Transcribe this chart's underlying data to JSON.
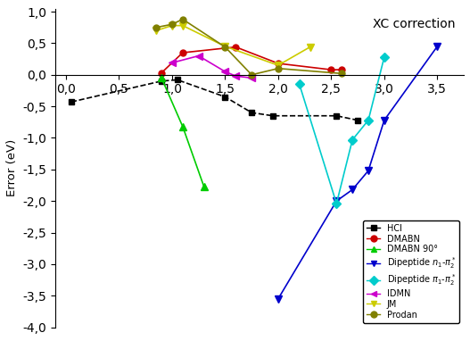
{
  "title": "XC correction",
  "ylabel": "Error (eV)",
  "xlim": [
    -0.1,
    3.75
  ],
  "ylim": [
    -4.0,
    1.05
  ],
  "yticks": [
    -4.0,
    -3.5,
    -3.0,
    -2.5,
    -2.0,
    -1.5,
    -1.0,
    -0.5,
    0.0,
    0.5,
    1.0
  ],
  "xticks": [
    0.0,
    0.5,
    1.0,
    1.5,
    2.0,
    2.5,
    3.0,
    3.5
  ],
  "xtick_labels": [
    "0,0",
    "0,5",
    "1,0",
    "1,5",
    "2,0",
    "2,5",
    "3,0",
    "3,5"
  ],
  "ytick_labels": [
    "-4,0",
    "-3,5",
    "-3,0",
    "-2,5",
    "-2,0",
    "-1,5",
    "-1,0",
    "-0,5",
    "0,0",
    "0,5",
    "1,0"
  ],
  "series": {
    "HCl": {
      "x": [
        0.05,
        0.9,
        1.05,
        1.5,
        1.75,
        1.95,
        2.55,
        2.75
      ],
      "y": [
        -0.43,
        -0.1,
        -0.08,
        -0.35,
        -0.6,
        -0.65,
        -0.65,
        -0.72
      ],
      "color": "#000000",
      "marker": "s",
      "linestyle": "--",
      "linewidth": 1.2,
      "markersize": 5
    },
    "DMABN": {
      "x": [
        0.9,
        1.1,
        1.6,
        2.0,
        2.5,
        2.6
      ],
      "y": [
        0.03,
        0.35,
        0.44,
        0.18,
        0.08,
        0.08
      ],
      "color": "#cc0000",
      "marker": "o",
      "linestyle": "-",
      "linewidth": 1.2,
      "markersize": 5
    },
    "DMABN 90°": {
      "x": [
        0.9,
        1.1,
        1.3
      ],
      "y": [
        -0.05,
        -0.82,
        -1.77
      ],
      "color": "#00cc00",
      "marker": "^",
      "linestyle": "-",
      "linewidth": 1.2,
      "markersize": 6
    },
    "Dipeptide n1-pi2*": {
      "x": [
        2.0,
        2.55,
        2.7,
        2.85,
        3.0,
        3.5
      ],
      "y": [
        -3.55,
        -2.0,
        -1.82,
        -1.52,
        -0.72,
        0.45
      ],
      "color": "#0000cc",
      "marker": "v",
      "linestyle": "-",
      "linewidth": 1.2,
      "markersize": 6
    },
    "Dipeptide pi1-pi2*": {
      "x": [
        2.2,
        2.55,
        2.7,
        2.85,
        3.0
      ],
      "y": [
        -0.15,
        -2.04,
        -1.03,
        -0.72,
        0.28
      ],
      "color": "#00cccc",
      "marker": "D",
      "linestyle": "-",
      "linewidth": 1.2,
      "markersize": 5
    },
    "IDMN": {
      "x": [
        1.0,
        1.25,
        1.5,
        1.6,
        1.75
      ],
      "y": [
        0.19,
        0.3,
        0.05,
        -0.02,
        -0.05
      ],
      "color": "#cc00cc",
      "marker": "<",
      "linestyle": "-",
      "linewidth": 1.2,
      "markersize": 6
    },
    "JM": {
      "x": [
        0.85,
        1.0,
        1.1,
        1.5,
        2.0,
        2.3
      ],
      "y": [
        0.7,
        0.78,
        0.78,
        0.45,
        0.15,
        0.44
      ],
      "color": "#cccc00",
      "marker": "v",
      "linestyle": "-",
      "linewidth": 1.2,
      "markersize": 6
    },
    "Prodan": {
      "x": [
        0.85,
        1.0,
        1.1,
        1.5,
        1.75,
        2.0,
        2.6
      ],
      "y": [
        0.75,
        0.8,
        0.88,
        0.44,
        0.0,
        0.1,
        0.02
      ],
      "color": "#808000",
      "marker": "o",
      "linestyle": "-",
      "linewidth": 1.2,
      "markersize": 5
    }
  },
  "legend": {
    "HCl": {
      "marker": "s",
      "color": "#000000"
    },
    "DMABN": {
      "marker": "o",
      "color": "#cc0000"
    },
    "DMABN 90°": {
      "marker": "^",
      "color": "#00cc00"
    },
    "Dipeptide $n_1$-$\\pi_2^*$": {
      "marker": "v",
      "color": "#0000cc"
    },
    "Dipeptide $\\pi_1$-$\\pi_2^*$": {
      "marker": "D",
      "color": "#00cccc"
    },
    "IDMN": {
      "marker": "<",
      "color": "#cc00cc"
    },
    "JM": {
      "marker": "v",
      "color": "#cccc00"
    },
    "Prodan": {
      "marker": "o",
      "color": "#808000"
    }
  }
}
